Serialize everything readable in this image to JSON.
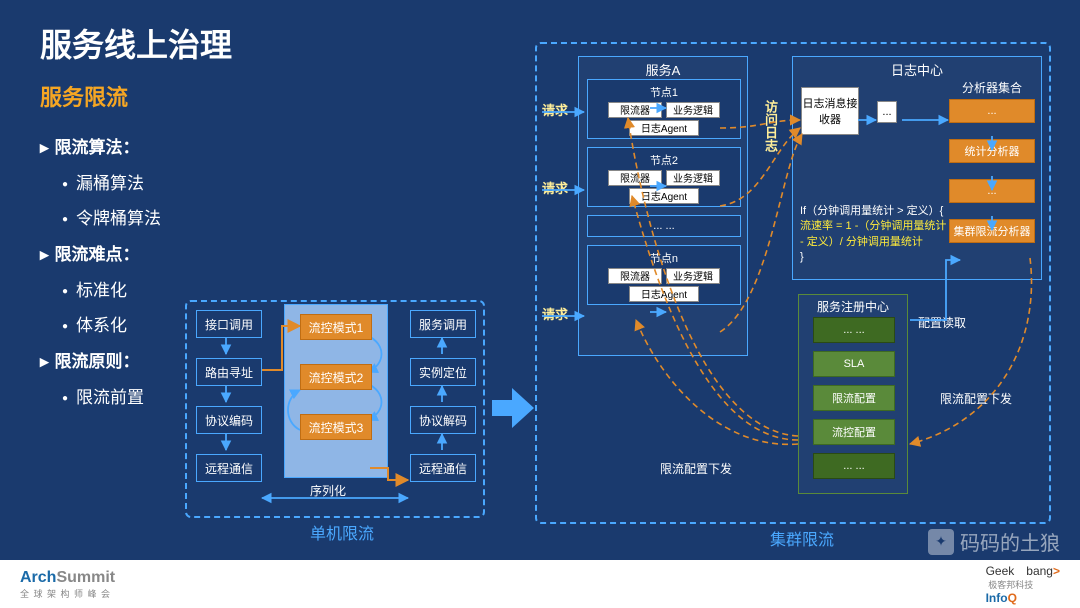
{
  "title": "服务线上治理",
  "subtitle": "服务限流",
  "bullets": [
    {
      "level": 1,
      "text": "限流算法："
    },
    {
      "level": 2,
      "text": "漏桶算法"
    },
    {
      "level": 2,
      "text": "令牌桶算法"
    },
    {
      "level": 1,
      "text": "限流难点："
    },
    {
      "level": 2,
      "text": "标准化"
    },
    {
      "level": 2,
      "text": "体系化"
    },
    {
      "level": 1,
      "text": "限流原则："
    },
    {
      "level": 2,
      "text": "限流前置"
    }
  ],
  "single": {
    "caption": "单机限流",
    "left_chain": [
      "接口调用",
      "路由寻址",
      "协议编码",
      "远程通信"
    ],
    "right_chain": [
      "服务调用",
      "实例定位",
      "协议解码",
      "远程通信"
    ],
    "modes": [
      "流控模式1",
      "流控模式2",
      "流控模式3"
    ],
    "serialize": "序列化"
  },
  "cluster": {
    "caption": "集群限流",
    "request": "请求",
    "access_log": "访问日志",
    "serviceA": {
      "title": "服务A",
      "nodes": [
        {
          "title": "节点1",
          "left": "限流器",
          "right": "业务逻辑",
          "agent": "日志Agent"
        },
        {
          "title": "节点2",
          "left": "限流器",
          "right": "业务逻辑",
          "agent": "日志Agent"
        },
        {
          "title": "... ...",
          "left": "",
          "right": "",
          "agent": ""
        },
        {
          "title": "节点n",
          "left": "限流器",
          "right": "业务逻辑",
          "agent": "日志Agent"
        }
      ]
    },
    "log_center": {
      "title": "日志中心",
      "receiver": "日志消息接收器",
      "dots": "...",
      "analyzers_title": "分析器集合",
      "analyzers": [
        "...",
        "统计分析器",
        "...",
        "集群限流分析器"
      ],
      "code": [
        "If（分钟调用量统计 > 定义）{",
        "  流速率 = 1 -（分钟调用量统计",
        "  - 定义）/ 分钟调用量统计",
        "}"
      ]
    },
    "registry": {
      "title": "服务注册中心",
      "items": [
        "... ...",
        "SLA",
        "限流配置",
        "流控配置",
        "... ..."
      ],
      "read": "配置读取",
      "push": "限流配置下发",
      "push2": "限流配置下发"
    }
  },
  "footer": {
    "arch1": "Arch",
    "arch2": "Summit",
    "arch_sub": "全 球 架 构 师 峰 会",
    "geek1": "Geek",
    "geek2": "bang",
    "geek3": ">",
    "geek_sub": "极客邦科技",
    "info1": "Info",
    "info2": "Q"
  },
  "watermark": "码码的土狼",
  "colors": {
    "bg": "#1a3a6e",
    "accent": "#4aa8ff",
    "orange": "#e08a2a",
    "yellow": "#f6a623",
    "green": "#5a8a3a",
    "code_y": "#ffeb3b"
  }
}
